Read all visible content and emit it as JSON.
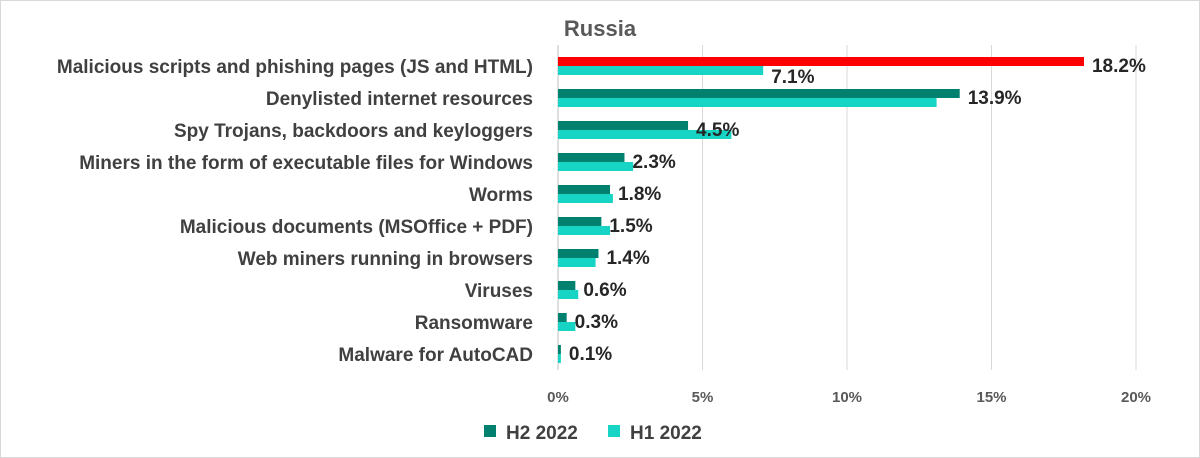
{
  "chart_data": {
    "type": "bar",
    "orientation": "horizontal",
    "title": "Russia",
    "categories": [
      "Malicious scripts and phishing pages (JS and HTML)",
      "Denylisted internet resources",
      "Spy Trojans, backdoors and keyloggers",
      "Miners in the form of executable files for Windows",
      "Worms",
      "Malicious documents (MSOffice + PDF)",
      "Web miners running in browsers",
      "Viruses",
      "Ransomware",
      "Malware for AutoCAD"
    ],
    "series": [
      {
        "name": "H2 2022",
        "color": "#00806f",
        "highlight_color": "#ff0000",
        "highlight_index": 0,
        "values": [
          18.2,
          13.9,
          4.5,
          2.3,
          1.8,
          1.5,
          1.4,
          0.6,
          0.3,
          0.1
        ],
        "labels": [
          "18.2%",
          "13.9%",
          "4.5%",
          "2.3%",
          "1.8%",
          "1.5%",
          "1.4%",
          "0.6%",
          "0.3%",
          "0.1%"
        ]
      },
      {
        "name": "H1 2022",
        "color": "#17d4c4",
        "values": [
          7.1,
          13.1,
          6.0,
          2.6,
          1.9,
          1.8,
          1.3,
          0.7,
          0.6,
          0.1
        ],
        "labels": [
          "7.1%",
          "",
          "",
          "",
          "",
          "",
          "",
          "",
          "",
          ""
        ]
      }
    ],
    "xlim": [
      0,
      20
    ],
    "ticks": [
      0,
      5,
      10,
      15,
      20
    ],
    "tick_labels": [
      "0%",
      "5%",
      "10%",
      "15%",
      "20%"
    ],
    "grid": true,
    "legend_position": "bottom"
  }
}
